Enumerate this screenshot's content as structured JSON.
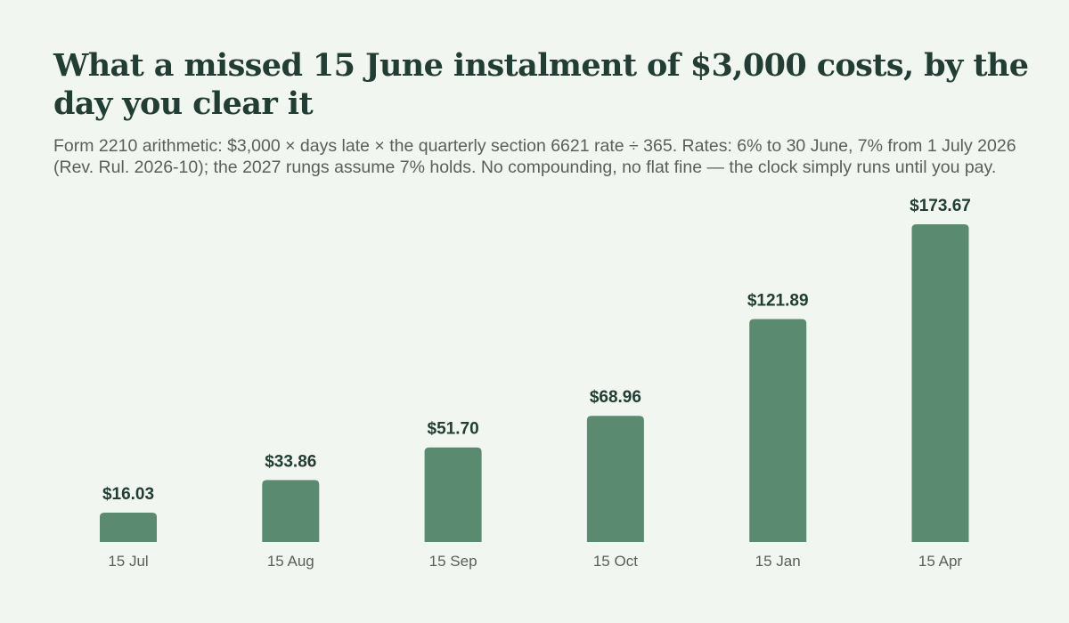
{
  "colors": {
    "background": "#f1f6f1",
    "bar": "#5a8a70",
    "title": "#223d33",
    "text": "#5a5f5c"
  },
  "chart_data": {
    "type": "bar",
    "title": "What a missed 15 June instalment of $3,000 costs, by the day you clear it",
    "subtitle": "Form 2210 arithmetic: $3,000 × days late × the quarterly section 6621 rate ÷ 365. Rates: 6% to 30 June, 7% from 1 July 2026 (Rev. Rul. 2026-10); the 2027 rungs assume 7% holds. No compounding, no flat fine — the clock simply runs until you pay.",
    "categories": [
      "15 Jul",
      "15 Aug",
      "15 Sep",
      "15 Oct",
      "15 Jan",
      "15 Apr"
    ],
    "values": [
      16.03,
      33.86,
      51.7,
      68.96,
      121.89,
      173.67
    ],
    "value_labels": [
      "$16.03",
      "$33.86",
      "$51.70",
      "$68.96",
      "$121.89",
      "$173.67"
    ],
    "xlabel": "",
    "ylabel": "",
    "ylim": [
      0,
      173.67
    ],
    "grid": false,
    "legend": "none"
  }
}
